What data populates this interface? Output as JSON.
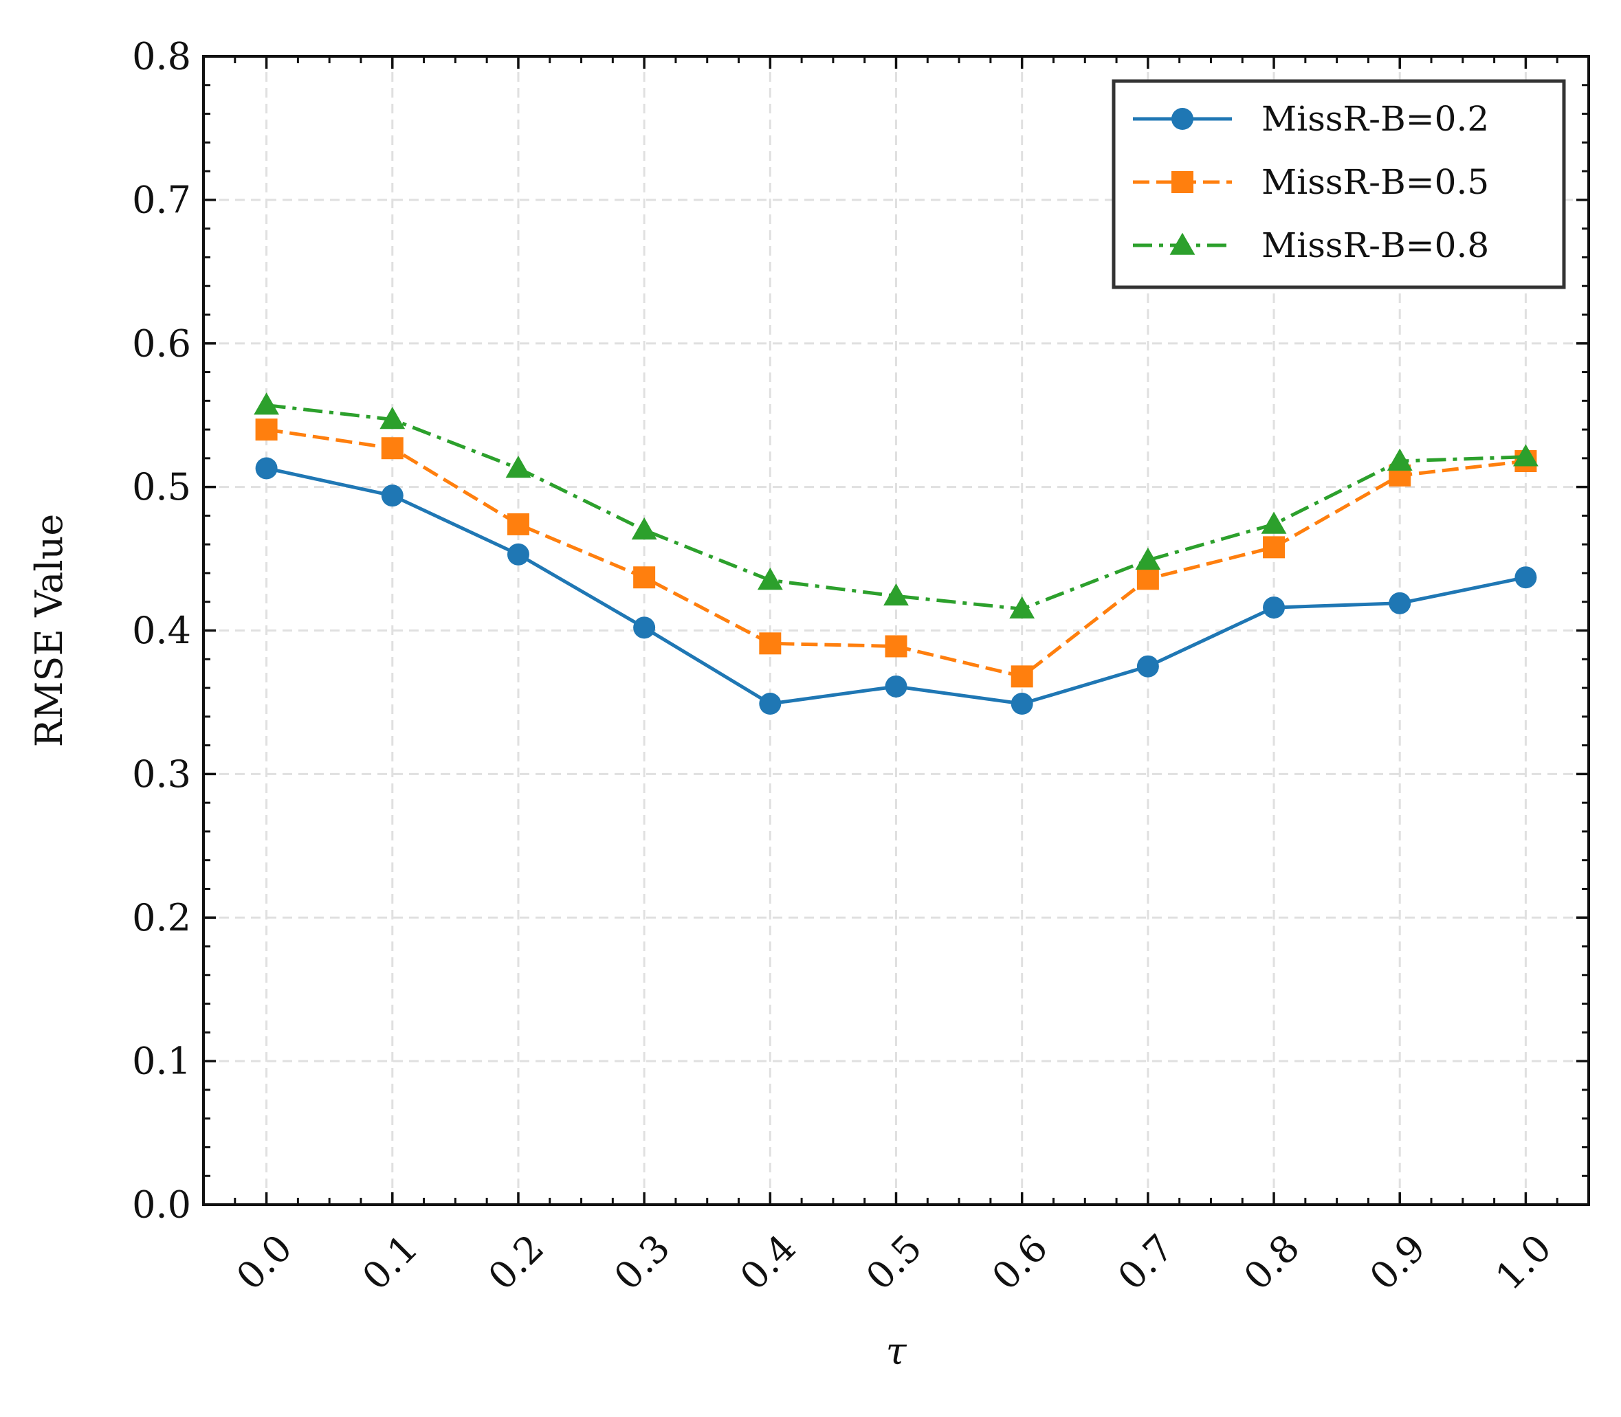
{
  "chart_data": {
    "type": "line",
    "title": "",
    "xlabel": "τ",
    "ylabel": "RMSE Value",
    "x": [
      0.0,
      0.1,
      0.2,
      0.3,
      0.4,
      0.5,
      0.6,
      0.7,
      0.8,
      0.9,
      1.0
    ],
    "x_tick_labels": [
      "0.0",
      "0.1",
      "0.2",
      "0.3",
      "0.4",
      "0.5",
      "0.6",
      "0.7",
      "0.8",
      "0.9",
      "1.0"
    ],
    "y_tick_labels": [
      "0.0",
      "0.1",
      "0.2",
      "0.3",
      "0.4",
      "0.5",
      "0.6",
      "0.7",
      "0.8"
    ],
    "xlim": [
      -0.05,
      1.05
    ],
    "ylim": [
      0.0,
      0.8
    ],
    "grid": true,
    "legend_position": "top-right",
    "series": [
      {
        "name": "MissR-B=0.2",
        "color": "#1f77b4",
        "marker": "circle",
        "line_style": "solid",
        "values": [
          0.513,
          0.494,
          0.453,
          0.402,
          0.349,
          0.361,
          0.349,
          0.375,
          0.416,
          0.419,
          0.437
        ]
      },
      {
        "name": "MissR-B=0.5",
        "color": "#ff7f0e",
        "marker": "square",
        "line_style": "dashed",
        "values": [
          0.54,
          0.527,
          0.474,
          0.437,
          0.391,
          0.389,
          0.368,
          0.436,
          0.458,
          0.508,
          0.518
        ]
      },
      {
        "name": "MissR-B=0.8",
        "color": "#2ca02c",
        "marker": "triangle",
        "line_style": "dashdot",
        "values": [
          0.557,
          0.547,
          0.513,
          0.47,
          0.435,
          0.424,
          0.415,
          0.449,
          0.474,
          0.518,
          0.521
        ]
      }
    ]
  }
}
